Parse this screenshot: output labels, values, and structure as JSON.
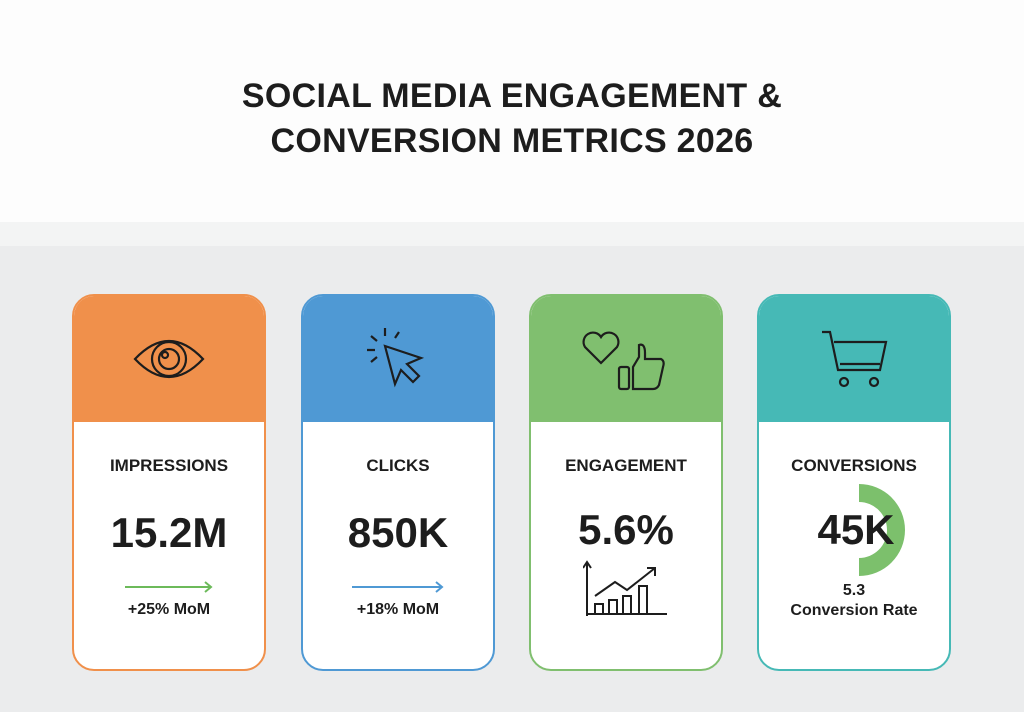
{
  "title": {
    "line1": "SOCIAL MEDIA ENGAGEMENT &",
    "line2": "CONVERSION METRICS 2026"
  },
  "cards": [
    {
      "label": "IMPRESSIONS",
      "value": "15.2M",
      "change": "+25% MoM",
      "icon": "eye-icon",
      "color": "#f0904b",
      "trend_color": "#6cba5a"
    },
    {
      "label": "CLICKS",
      "value": "850K",
      "change": "+18% MoM",
      "icon": "cursor-click-icon",
      "color": "#4f99d4",
      "trend_color": "#4f99d4"
    },
    {
      "label": "ENGAGEMENT",
      "value": "5.6%",
      "icon": "heart-thumbs-up-icon",
      "chart_icon": "growth-chart-icon",
      "color": "#80bf6f"
    },
    {
      "label": "CONVERSIONS",
      "value": "45K",
      "rate_value": "5.3",
      "rate_label": "Conversion Rate",
      "icon": "shopping-cart-icon",
      "color": "#46b9b6",
      "gauge_color": "#7cc06c"
    }
  ]
}
